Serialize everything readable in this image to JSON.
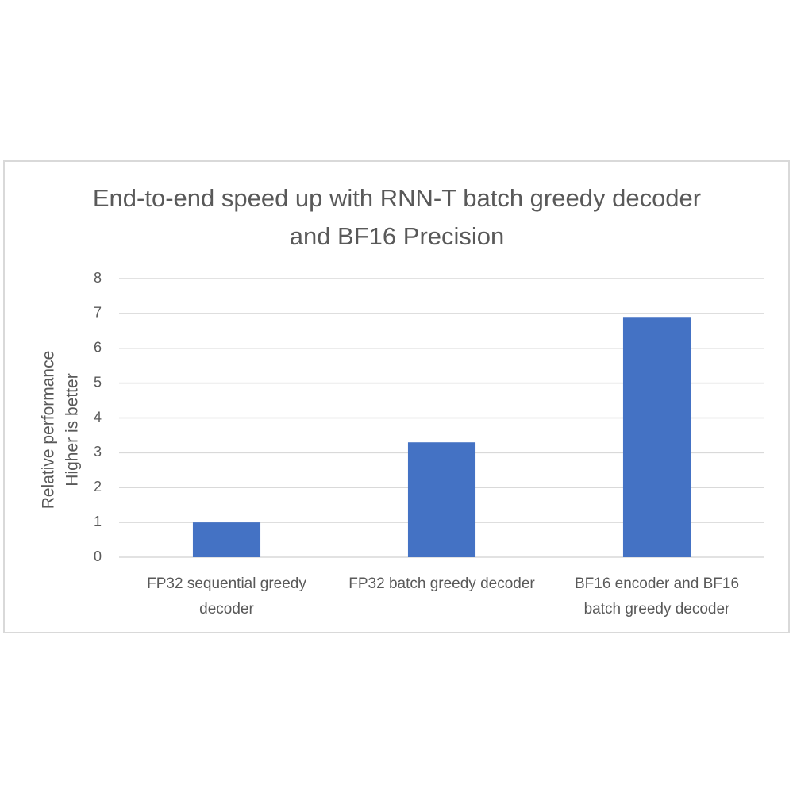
{
  "chart_data": {
    "type": "bar",
    "title": "End-to-end speed up with RNN-T batch greedy decoder and BF16 Precision",
    "ylabel": [
      "Relative performance",
      "Higher is better"
    ],
    "categories": [
      "FP32 sequential greedy decoder",
      "FP32 batch greedy decoder",
      "BF16 encoder and BF16 batch greedy decoder"
    ],
    "values": [
      1,
      3.3,
      6.9
    ],
    "color": "#4472c4",
    "ylim": [
      0,
      8
    ],
    "yticks": [
      0,
      1,
      2,
      3,
      4,
      5,
      6,
      7,
      8
    ],
    "grid": true
  }
}
